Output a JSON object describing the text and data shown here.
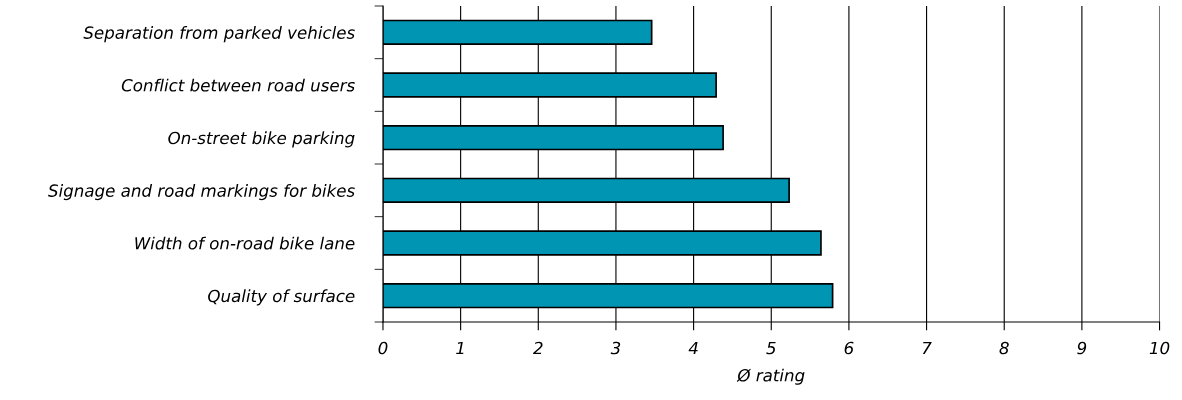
{
  "chart_data": {
    "type": "bar",
    "orientation": "horizontal",
    "xlabel": "Ø rating",
    "categories": [
      "Separation from parked vehicles",
      "Conflict between road users",
      "On-street bike parking",
      "Signage and road markings for bikes",
      "Width of on-road bike lane",
      "Quality of surface"
    ],
    "values": [
      3.46,
      4.29,
      4.38,
      5.23,
      5.64,
      5.79
    ],
    "color": "#0095b3",
    "xlim": [
      0,
      10
    ],
    "xticks": [
      0,
      1,
      2,
      3,
      4,
      5,
      6,
      7,
      8,
      9,
      10
    ],
    "grid": "x",
    "legend": false
  }
}
